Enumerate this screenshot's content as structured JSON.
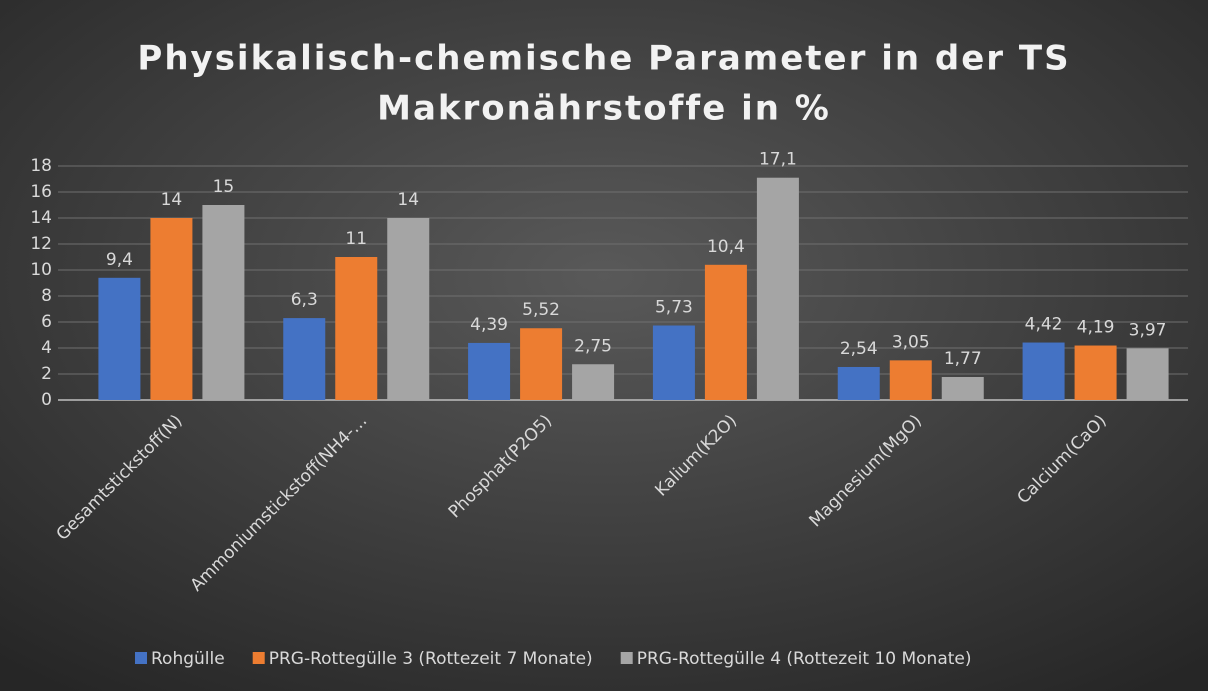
{
  "chart_data": {
    "type": "bar",
    "title": "Physikalisch-chemische Parameter in der TS",
    "subtitle": "Makronährstoffe in %",
    "categories": [
      "Gesamtstickstoff(N)",
      "Ammoniumstickstoff(NH4-…",
      "Phosphat(P2O5)",
      "Kalium(K2O)",
      "Magnesium(MgO)",
      "Calcium(CaO)"
    ],
    "series": [
      {
        "name": "Rohgülle",
        "color": "#4472c4",
        "values": [
          9.4,
          6.3,
          4.39,
          5.73,
          2.54,
          4.42
        ],
        "value_labels": [
          "9,4",
          "6,3",
          "4,39",
          "5,73",
          "2,54",
          "4,42"
        ]
      },
      {
        "name": "PRG-Rottegülle 3 (Rottezeit 7 Monate)",
        "color": "#ed7d31",
        "values": [
          14,
          11,
          5.52,
          10.4,
          3.05,
          4.19
        ],
        "value_labels": [
          "14",
          "11",
          "5,52",
          "10,4",
          "3,05",
          "4,19"
        ]
      },
      {
        "name": "PRG-Rottegülle 4 (Rottezeit 10 Monate)",
        "color": "#a5a5a5",
        "values": [
          15,
          14,
          2.75,
          17.1,
          1.77,
          3.97
        ],
        "value_labels": [
          "15",
          "14",
          "2,75",
          "17,1",
          "1,77",
          "3,97"
        ]
      }
    ],
    "ylim": [
      0,
      18
    ],
    "yticks": [
      0,
      2,
      4,
      6,
      8,
      10,
      12,
      14,
      16,
      18
    ],
    "grid": true,
    "legend": "bottom"
  }
}
